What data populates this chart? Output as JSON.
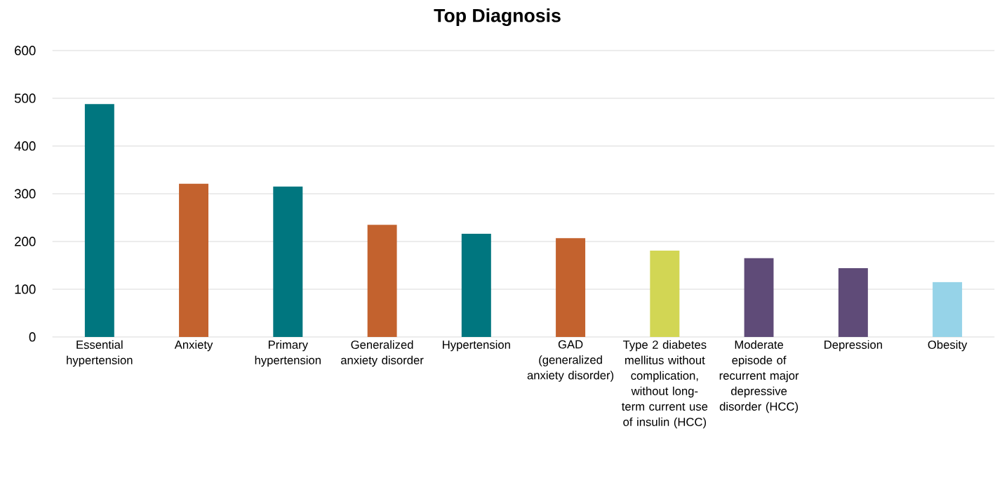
{
  "chart_data": {
    "type": "bar",
    "title": "Top Diagnosis",
    "categories": [
      "Essential hypertension",
      "Anxiety",
      "Primary hypertension",
      "Generalized anxiety disorder",
      "Hypertension",
      "GAD (generalized anxiety disorder)",
      "Type 2 diabetes mellitus without complication, without long-term current use of insulin (HCC)",
      "Moderate episode of recurrent major depressive disorder (HCC)",
      "Depression",
      "Obesity"
    ],
    "values": [
      488,
      321,
      315,
      235,
      216,
      207,
      181,
      165,
      144,
      115
    ],
    "colors": [
      "#00767f",
      "#c3622e",
      "#00767f",
      "#c3622e",
      "#00767f",
      "#c3622e",
      "#d2d654",
      "#5f4b78",
      "#5f4b78",
      "#96d3e8"
    ],
    "ylim": [
      0,
      600
    ],
    "yticks": [
      0,
      100,
      200,
      300,
      400,
      500,
      600
    ],
    "grid": "y"
  }
}
